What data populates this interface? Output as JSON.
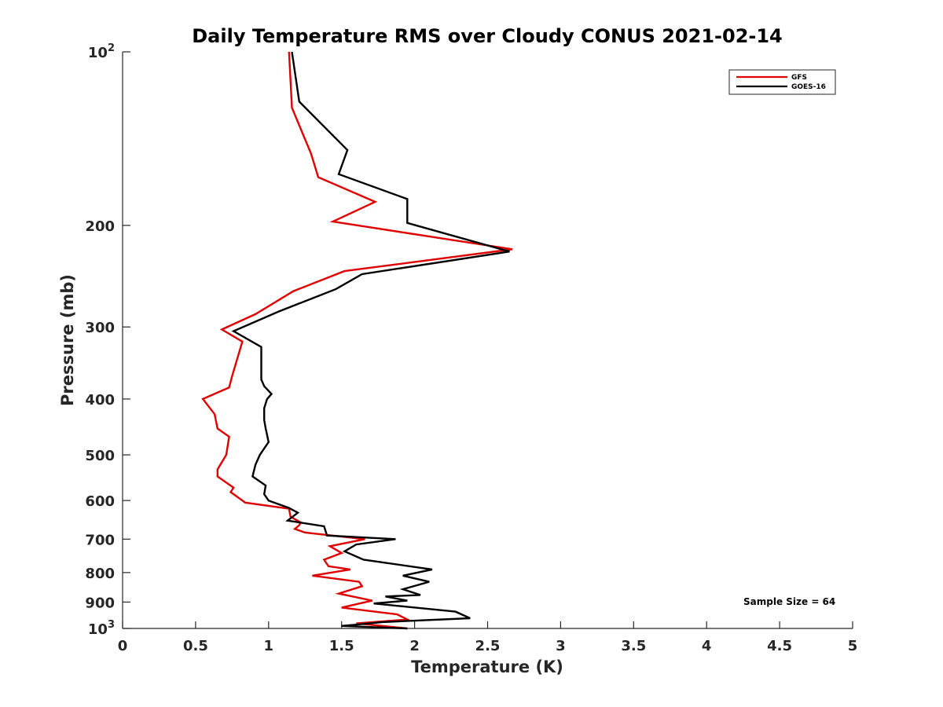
{
  "chart_data": {
    "type": "line",
    "title": "Daily Temperature RMS over Cloudy CONUS 2021-02-14",
    "xlabel": "Temperature (K)",
    "ylabel": "Pressure (mb)",
    "xlim": [
      0,
      5
    ],
    "ylim": [
      100,
      1000
    ],
    "y_scale": "log",
    "y_reversed": true,
    "x_ticks": [
      0,
      0.5,
      1,
      1.5,
      2,
      2.5,
      3,
      3.5,
      4,
      4.5,
      5
    ],
    "x_tick_labels": [
      "0",
      "0.5",
      "1",
      "1.5",
      "2",
      "2.5",
      "3",
      "3.5",
      "4",
      "4.5",
      "5"
    ],
    "y_ticks": [
      100,
      200,
      300,
      400,
      500,
      600,
      700,
      800,
      900,
      1000
    ],
    "y_tick_labels": [
      {
        "base": "10",
        "exp": "2"
      },
      {
        "base": "200"
      },
      {
        "base": "300"
      },
      {
        "base": "400"
      },
      {
        "base": "500"
      },
      {
        "base": "600"
      },
      {
        "base": "700"
      },
      {
        "base": "800"
      },
      {
        "base": "900"
      },
      {
        "base": "10",
        "exp": "3"
      }
    ],
    "grid": false,
    "legend_position": "top-right",
    "annotation": "Sample Size = 64",
    "series": [
      {
        "name": "GFS",
        "color": "#e00000",
        "points": [
          [
            1.14,
            100
          ],
          [
            1.16,
            125
          ],
          [
            1.29,
            150
          ],
          [
            1.34,
            165
          ],
          [
            1.73,
            182
          ],
          [
            1.44,
            197
          ],
          [
            2.67,
            220
          ],
          [
            1.52,
            240
          ],
          [
            1.17,
            260
          ],
          [
            0.91,
            285
          ],
          [
            0.68,
            303
          ],
          [
            0.82,
            318
          ],
          [
            0.75,
            365
          ],
          [
            0.73,
            382
          ],
          [
            0.55,
            400
          ],
          [
            0.63,
            425
          ],
          [
            0.65,
            450
          ],
          [
            0.73,
            465
          ],
          [
            0.71,
            500
          ],
          [
            0.65,
            530
          ],
          [
            0.65,
            545
          ],
          [
            0.76,
            570
          ],
          [
            0.74,
            580
          ],
          [
            0.84,
            605
          ],
          [
            1.14,
            620
          ],
          [
            1.15,
            640
          ],
          [
            1.22,
            655
          ],
          [
            1.21,
            662
          ],
          [
            1.18,
            672
          ],
          [
            1.25,
            682
          ],
          [
            1.66,
            700
          ],
          [
            1.42,
            720
          ],
          [
            1.5,
            740
          ],
          [
            1.38,
            760
          ],
          [
            1.41,
            780
          ],
          [
            1.56,
            790
          ],
          [
            1.3,
            810
          ],
          [
            1.62,
            830
          ],
          [
            1.64,
            845
          ],
          [
            1.48,
            870
          ],
          [
            1.71,
            895
          ],
          [
            1.5,
            920
          ],
          [
            1.88,
            945
          ],
          [
            1.95,
            965
          ],
          [
            1.6,
            980
          ],
          [
            1.78,
            990
          ],
          [
            1.95,
            1000
          ]
        ]
      },
      {
        "name": "GOES-16",
        "color": "#000000",
        "points": [
          [
            1.16,
            100
          ],
          [
            1.21,
            122
          ],
          [
            1.54,
            148
          ],
          [
            1.48,
            163
          ],
          [
            1.95,
            180
          ],
          [
            1.95,
            198
          ],
          [
            2.65,
            222
          ],
          [
            1.64,
            243
          ],
          [
            1.46,
            258
          ],
          [
            1.07,
            282
          ],
          [
            0.76,
            305
          ],
          [
            0.95,
            325
          ],
          [
            0.95,
            370
          ],
          [
            0.97,
            380
          ],
          [
            1.02,
            392
          ],
          [
            0.99,
            400
          ],
          [
            0.97,
            415
          ],
          [
            0.97,
            435
          ],
          [
            0.98,
            450
          ],
          [
            1.0,
            475
          ],
          [
            0.94,
            500
          ],
          [
            0.91,
            520
          ],
          [
            0.89,
            545
          ],
          [
            0.98,
            565
          ],
          [
            0.97,
            585
          ],
          [
            1.0,
            600
          ],
          [
            1.14,
            618
          ],
          [
            1.2,
            630
          ],
          [
            1.13,
            650
          ],
          [
            1.38,
            665
          ],
          [
            1.4,
            690
          ],
          [
            1.87,
            700
          ],
          [
            1.6,
            715
          ],
          [
            1.52,
            735
          ],
          [
            1.65,
            760
          ],
          [
            2.12,
            790
          ],
          [
            1.92,
            810
          ],
          [
            2.1,
            830
          ],
          [
            1.92,
            855
          ],
          [
            2.04,
            875
          ],
          [
            1.8,
            880
          ],
          [
            1.95,
            895
          ],
          [
            1.72,
            905
          ],
          [
            2.28,
            935
          ],
          [
            2.38,
            960
          ],
          [
            1.78,
            975
          ],
          [
            1.6,
            985
          ],
          [
            1.5,
            990
          ],
          [
            1.95,
            1000
          ]
        ]
      }
    ]
  }
}
